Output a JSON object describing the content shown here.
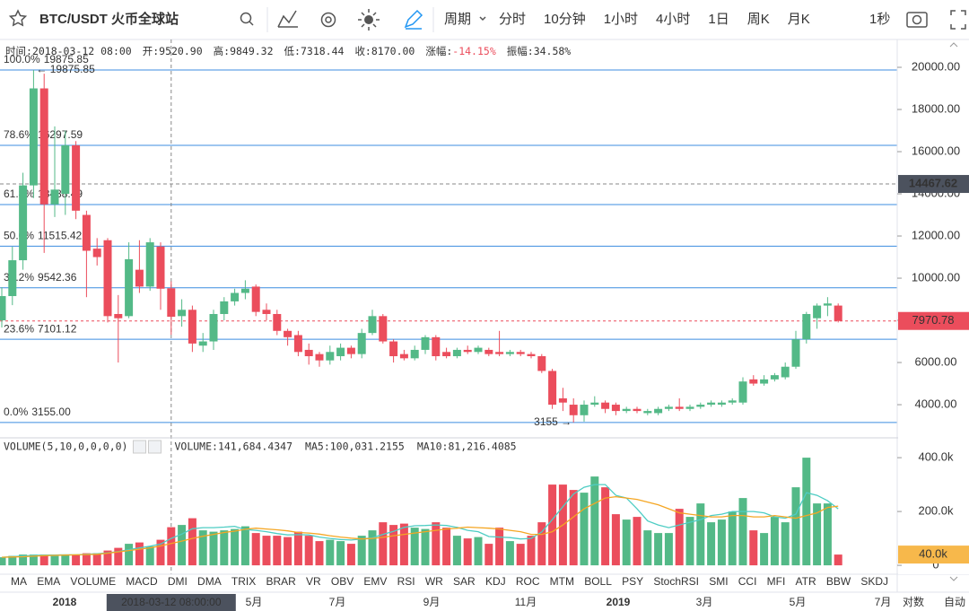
{
  "toolbar": {
    "symbol": "BTC/USDT 火币全球站",
    "period_menu": "周期",
    "periods": [
      "分时",
      "10分钟",
      "1小时",
      "4小时",
      "1日",
      "周K",
      "月K"
    ],
    "active_period": "周K",
    "refresh": "1秒"
  },
  "info_bar": [
    {
      "label": "时间:",
      "value": "2018-03-12 08:00"
    },
    {
      "label": "开:",
      "value": "9520.90"
    },
    {
      "label": "高:",
      "value": "9849.32"
    },
    {
      "label": "低:",
      "value": "7318.44"
    },
    {
      "label": "收:",
      "value": "8170.00"
    },
    {
      "label": "涨幅:",
      "value": "-14.15%"
    },
    {
      "label": "振幅:",
      "value": "34.58%"
    }
  ],
  "chart_data": [
    {
      "type": "candlestick",
      "up_color": "#53b987",
      "down_color": "#eb4d5c",
      "open": [
        8000,
        9150,
        10850,
        14400,
        19000,
        13500,
        14000,
        16300,
        13000,
        11400,
        11800,
        8300,
        8200,
        10400,
        9600,
        11500,
        9520.9,
        8200,
        8500,
        6800,
        7000,
        8300,
        8900,
        9300,
        9600,
        8500,
        8300,
        7500,
        7300,
        6600,
        6400,
        6100,
        6300,
        6700,
        6400,
        7400,
        8200,
        7000,
        6400,
        6200,
        6600,
        7200,
        6500,
        6300,
        6600,
        6500,
        6600,
        6500,
        6400,
        6500,
        6400,
        6300,
        5600,
        4300,
        4000,
        3500,
        4000,
        4100,
        4000,
        3700,
        3800,
        3600,
        3600,
        3800,
        3900,
        3800,
        3900,
        4000,
        4000,
        4100,
        4100,
        5200,
        5000,
        5200,
        5300,
        5800,
        7100,
        8100,
        8700,
        8700
      ],
      "high": [
        9570,
        11490,
        15000,
        19875.85,
        19700,
        17200,
        17000,
        16500,
        13200,
        11900,
        11900,
        9200,
        11700,
        11800,
        11900,
        11700,
        9849.32,
        9000,
        8700,
        7400,
        8500,
        9100,
        9500,
        9900,
        9700,
        8800,
        8500,
        7600,
        7500,
        6900,
        6500,
        6800,
        6900,
        6800,
        7600,
        8500,
        8300,
        7100,
        6600,
        6800,
        7300,
        7300,
        6700,
        6700,
        6800,
        6800,
        6700,
        7500,
        6600,
        6600,
        6500,
        6400,
        5700,
        4800,
        4300,
        4200,
        4400,
        4200,
        4100,
        3900,
        3900,
        3800,
        3900,
        4000,
        4300,
        4000,
        4100,
        4200,
        4200,
        4300,
        5300,
        5400,
        5400,
        5500,
        6000,
        7500,
        8400,
        8800,
        9100,
        8800
      ],
      "low": [
        7660,
        8720,
        10400,
        13800,
        11200,
        12900,
        13000,
        12800,
        9100,
        10600,
        7900,
        6000,
        8100,
        9300,
        9400,
        8500,
        7318.44,
        7700,
        6500,
        6500,
        6600,
        8000,
        8700,
        9000,
        8200,
        8000,
        7300,
        6800,
        6300,
        5900,
        5800,
        5900,
        6100,
        6200,
        6200,
        7300,
        6900,
        6000,
        6100,
        6100,
        6400,
        6100,
        6200,
        6200,
        6400,
        6400,
        6300,
        6300,
        6300,
        6300,
        6200,
        5500,
        3800,
        3700,
        3155,
        3200,
        3900,
        3600,
        3500,
        3600,
        3600,
        3500,
        3500,
        3700,
        3700,
        3700,
        3800,
        3900,
        3900,
        4000,
        4000,
        4900,
        4900,
        5100,
        5200,
        5700,
        6900,
        7600,
        8200,
        7900
      ],
      "close": [
        9150,
        10850,
        14400,
        19000,
        13500,
        14200,
        16300,
        13200,
        11300,
        11000,
        8200,
        8100,
        10900,
        9600,
        11700,
        9500,
        8170.0,
        8500,
        6900,
        7000,
        8300,
        8900,
        9300,
        9500,
        8400,
        8300,
        7500,
        7200,
        6500,
        6300,
        6100,
        6500,
        6700,
        6400,
        7400,
        8200,
        7000,
        6300,
        6200,
        6600,
        7200,
        6300,
        6300,
        6600,
        6500,
        6700,
        6400,
        6400,
        6500,
        6400,
        6300,
        5600,
        4000,
        4100,
        3500,
        4000,
        4100,
        3800,
        3700,
        3800,
        3700,
        3700,
        3800,
        3900,
        3800,
        3900,
        4000,
        4100,
        4100,
        4200,
        5100,
        5000,
        5200,
        5400,
        5800,
        7100,
        8300,
        8700,
        8800,
        7970.78
      ],
      "ylim": [
        2470,
        21320
      ],
      "yticks": [
        {
          "value": 4000,
          "label": "4000.00"
        },
        {
          "value": 6000,
          "label": "6000.00"
        },
        {
          "value": 8000,
          "label": "8000.00"
        },
        {
          "value": 10000,
          "label": "10000.00"
        },
        {
          "value": 12000,
          "label": "12000.00"
        },
        {
          "value": 14000,
          "label": "14000.00"
        },
        {
          "value": 16000,
          "label": "16000.00"
        },
        {
          "value": 18000,
          "label": "18000.00"
        },
        {
          "value": 20000,
          "label": "20000.00"
        }
      ],
      "fib_color": "#3c8de0",
      "fib_levels": [
        {
          "ratio": "100.0%",
          "price": 19875.85
        },
        {
          "ratio": "78.6%",
          "price": 16297.59
        },
        {
          "ratio": "61.8%",
          "price": 13488.49
        },
        {
          "ratio": "50.0%",
          "price": 11515.42
        },
        {
          "ratio": "38.2%",
          "price": 9542.36
        },
        {
          "ratio": "23.6%",
          "price": 7101.12
        },
        {
          "ratio": "0.0%",
          "price": {
            "value": 3155,
            "label": "3155.00"
          }
        }
      ],
      "high_marker": {
        "value": 19875.85,
        "label": "← 19875.85"
      },
      "low_marker": {
        "value": 3155,
        "label": "3155 →"
      },
      "crosshair_price": 14467.62,
      "last_price": 7970.78
    },
    {
      "type": "bar",
      "title": "VOLUME(5,10,0,0,0,0)",
      "values": [
        30000,
        35000,
        40000,
        40000,
        40000,
        35000,
        40000,
        40000,
        45000,
        45000,
        55000,
        65000,
        80000,
        85000,
        70000,
        95000,
        141684.4347,
        150000,
        175000,
        130000,
        125000,
        130000,
        135000,
        145000,
        120000,
        110000,
        110000,
        105000,
        125000,
        110000,
        90000,
        95000,
        90000,
        80000,
        110000,
        130000,
        160000,
        150000,
        155000,
        140000,
        135000,
        160000,
        140000,
        110000,
        100000,
        105000,
        80000,
        140000,
        90000,
        80000,
        110000,
        160000,
        300000,
        300000,
        280000,
        270000,
        330000,
        290000,
        190000,
        170000,
        180000,
        130000,
        120000,
        120000,
        210000,
        180000,
        230000,
        160000,
        170000,
        200000,
        250000,
        130000,
        120000,
        180000,
        160000,
        290000,
        400000,
        230000,
        230000,
        40000
      ],
      "series": [
        {
          "color": "#4ecdc4",
          "values": [
            30000,
            32000,
            35000,
            37000,
            38000,
            38000,
            39000,
            39000,
            41000,
            43000,
            46000,
            51000,
            58000,
            65000,
            71000,
            79000,
            100031.2155,
            116000,
            136000,
            140000,
            140000,
            142000,
            145000,
            133000,
            130000,
            125000,
            118000,
            113000,
            114000,
            113000,
            105000,
            100000,
            96000,
            94000,
            98000,
            102000,
            115000,
            126000,
            141000,
            147000,
            148000,
            150000,
            148000,
            141000,
            130000,
            125000,
            107000,
            105000,
            103000,
            98000,
            100000,
            124000,
            170000,
            218000,
            265000,
            290000,
            300000,
            300000,
            260000,
            250000,
            210000,
            165000,
            150000,
            140000,
            150000,
            160000,
            170000,
            185000,
            190000,
            200000,
            200000,
            200000,
            195000,
            180000,
            175000,
            190000,
            270000,
            260000,
            240000,
            210000
          ]
        },
        {
          "color": "#f5a623",
          "values": [
            30000,
            31000,
            32000,
            34000,
            36000,
            37000,
            38000,
            39000,
            40000,
            41000,
            45000,
            50000,
            55000,
            60000,
            65000,
            72000,
            81216.4085,
            90000,
            100000,
            108000,
            115000,
            122000,
            127000,
            134000,
            138000,
            135000,
            132000,
            128000,
            122000,
            120000,
            116000,
            110000,
            105000,
            101000,
            98000,
            100000,
            104000,
            110000,
            115000,
            120000,
            125000,
            130000,
            135000,
            138000,
            142000,
            140000,
            138000,
            135000,
            130000,
            125000,
            115000,
            115000,
            125000,
            150000,
            180000,
            210000,
            230000,
            250000,
            255000,
            250000,
            245000,
            235000,
            225000,
            210000,
            195000,
            190000,
            185000,
            180000,
            180000,
            185000,
            185000,
            180000,
            180000,
            185000,
            180000,
            175000,
            185000,
            195000,
            215000,
            220000
          ]
        }
      ],
      "legend": [
        {
          "text": "VOLUME:141,684.4347",
          "color": "#333333"
        },
        {
          "text": "MA5:100,031.2155",
          "color": "#36b9a8"
        },
        {
          "text": "MA10:81,216.4085",
          "color": "#e9a21f"
        }
      ],
      "ylim": [
        -33000,
        467000
      ],
      "yticks": [
        0,
        {
          "value": 200000,
          "label": "200.0k"
        },
        {
          "value": 400000,
          "label": "400.0k"
        }
      ],
      "last_volume": {
        "value": 40000,
        "label": "40.0k"
      }
    }
  ],
  "indicators": [
    "MA",
    "EMA",
    "VOLUME",
    "MACD",
    "DMI",
    "DMA",
    "TRIX",
    "BRAR",
    "VR",
    "OBV",
    "EMV",
    "RSI",
    "WR",
    "SAR",
    "KDJ",
    "ROC",
    "MTM",
    "BOLL",
    "PSY",
    "StochRSI",
    "SMI",
    "CCI",
    "MFI",
    "ATR",
    "BBW",
    "SKDJ"
  ],
  "active_indicator": "VOLUME",
  "time_labels": [
    "2018",
    "5月",
    "7月",
    "9月",
    "11月",
    "2019",
    "3月",
    "5月",
    "7月"
  ],
  "cursor_time": "2018-03-12 08:00:00",
  "scale_options": [
    "对数",
    "自动"
  ]
}
